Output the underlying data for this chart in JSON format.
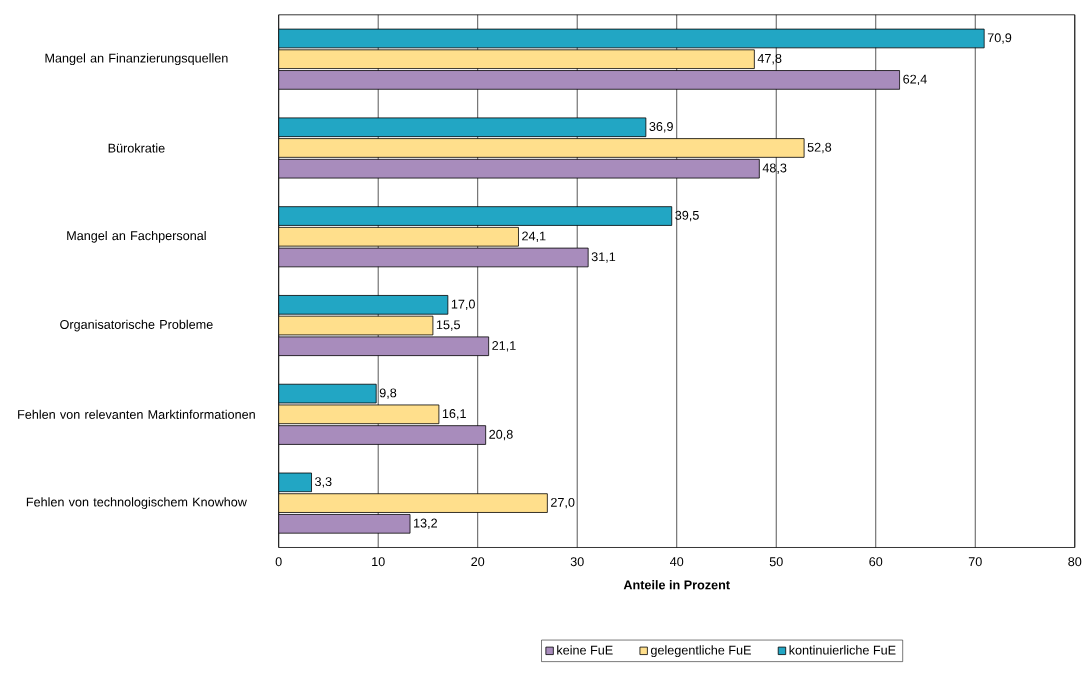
{
  "chart_data": {
    "type": "bar",
    "orientation": "horizontal",
    "xlabel": "Anteile in Prozent",
    "categories": [
      "Mangel an Finanzierungsquellen",
      "Bürokratie",
      "Mangel an Fachpersonal",
      "Organisatorische Probleme",
      "Fehlen von relevanten Marktinformationen",
      "Fehlen von technologischem Knowhow"
    ],
    "series": [
      {
        "name": "keine FuE",
        "color": "#a88cbc",
        "values": [
          62.4,
          48.3,
          31.1,
          21.1,
          20.8,
          13.2
        ],
        "value_labels": [
          "62,4",
          "48,3",
          "31,1",
          "21,1",
          "20,8",
          "13,2"
        ]
      },
      {
        "name": "gelegentliche FuE",
        "color": "#ffdf8c",
        "values": [
          47.8,
          52.8,
          24.1,
          15.5,
          16.1,
          27.0
        ],
        "value_labels": [
          "47,8",
          "52,8",
          "24,1",
          "15,5",
          "16,1",
          "27,0"
        ]
      },
      {
        "name": "kontinuierliche FuE",
        "color": "#22a6c4",
        "values": [
          70.9,
          36.9,
          39.5,
          17.0,
          9.8,
          3.3
        ],
        "value_labels": [
          "70,9",
          "36,9",
          "39,5",
          "17,0",
          "9,8",
          "3,3"
        ]
      }
    ],
    "xlim": [
      0,
      80
    ],
    "xticks": [
      0,
      10,
      20,
      30,
      40,
      50,
      60,
      70,
      80
    ],
    "grid": "x",
    "legend": "bottom"
  }
}
